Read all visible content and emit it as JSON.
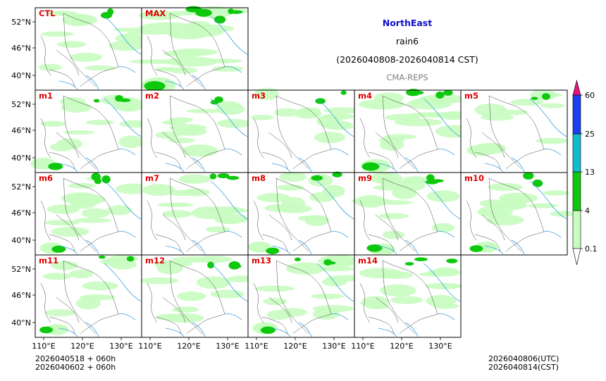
{
  "title": {
    "region": "NorthEast",
    "variable": "rain6",
    "period": "(2026040808-2026040814 CST)",
    "model": "CMA-REPS"
  },
  "colors": {
    "title": "#1010d0",
    "label": "#e00000",
    "subtitle": "#808080",
    "river": "#3aa0e0",
    "border": "#444444"
  },
  "axes": {
    "lat_ticks": [
      "52°N",
      "46°N",
      "40°N"
    ],
    "lon_ticks": [
      "110°E",
      "120°E",
      "130°E"
    ]
  },
  "panels": [
    {
      "label": "CTL",
      "intensity": 0.45,
      "south": 0
    },
    {
      "label": "MAX",
      "intensity": 1.0,
      "south": 1
    },
    {
      "label": "m1",
      "intensity": 0.55,
      "south": 1
    },
    {
      "label": "m2",
      "intensity": 0.45,
      "south": 0
    },
    {
      "label": "m3",
      "intensity": 0.4,
      "south": 0
    },
    {
      "label": "m4",
      "intensity": 0.75,
      "south": 1
    },
    {
      "label": "m5",
      "intensity": 0.3,
      "south": 0
    },
    {
      "label": "m6",
      "intensity": 0.5,
      "south": 1
    },
    {
      "label": "m7",
      "intensity": 0.5,
      "south": 0
    },
    {
      "label": "m8",
      "intensity": 0.45,
      "south": 1
    },
    {
      "label": "m9",
      "intensity": 0.6,
      "south": 1
    },
    {
      "label": "m10",
      "intensity": 0.45,
      "south": 1
    },
    {
      "label": "m11",
      "intensity": 0.45,
      "south": 1
    },
    {
      "label": "m12",
      "intensity": 0.6,
      "south": 0
    },
    {
      "label": "m13",
      "intensity": 0.55,
      "south": 1
    },
    {
      "label": "m14",
      "intensity": 0.55,
      "south": 0
    }
  ],
  "colorbar": {
    "levels": [
      "0.1",
      "4",
      "13",
      "25",
      "60"
    ],
    "colors": [
      "#c8fcc0",
      "#0ec80e",
      "#12bccc",
      "#1c40f0",
      "#e01878"
    ]
  },
  "footer": {
    "init_line1": "2026040518  +  060h",
    "init_line2": "2026040602  +  060h",
    "valid_utc": "2026040806(UTC)",
    "valid_cst": "2026040814(CST)"
  }
}
